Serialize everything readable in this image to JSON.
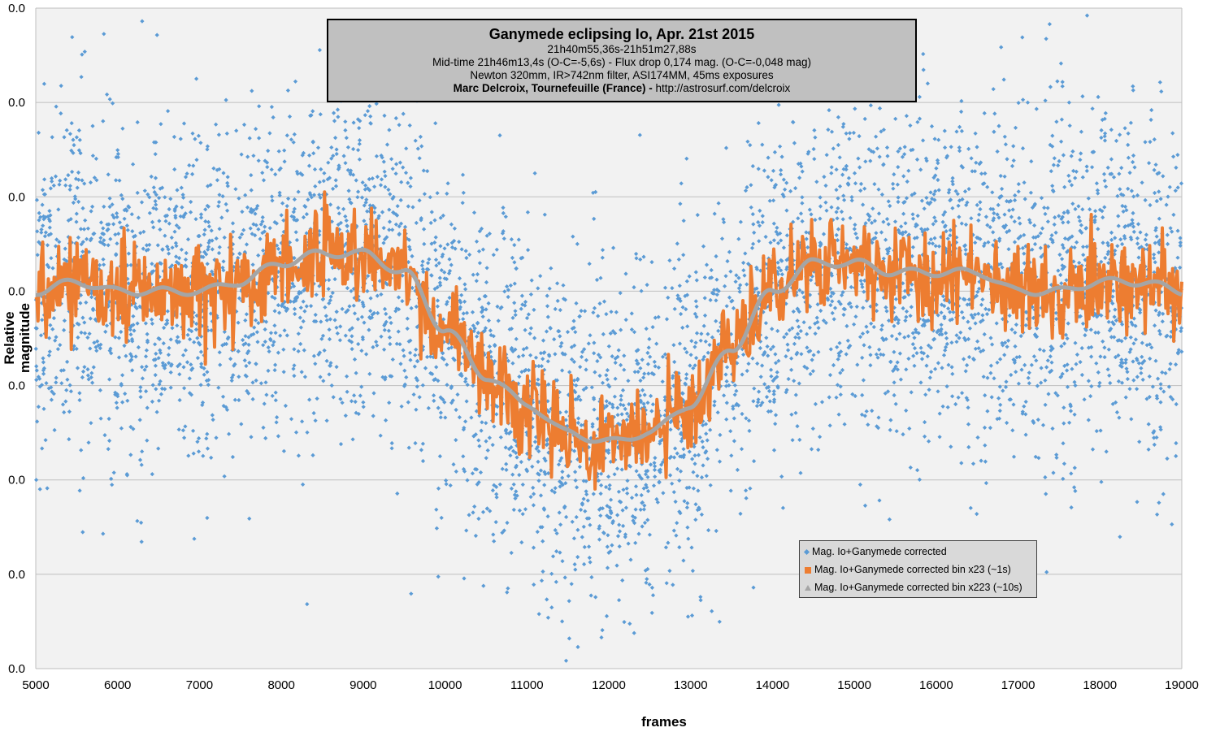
{
  "chart_data": {
    "type": "scatter",
    "title": "Ganymede eclipsing Io, Apr. 21st 2015",
    "subtitle_lines": [
      "21h40m55,36s-21h51m27,88s",
      "Mid-time 21h46m13,4s (O-C=-5,6s) - Flux drop 0,174 mag. (O-C=-0,048 mag)",
      "Newton 320mm, IR>742nm filter, ASI174MM, 45ms exposures"
    ],
    "credit": {
      "author": "Marc Delcroix, Tournefeuille (France) -",
      "url": "http://astrosurf.com/delcroix"
    },
    "xlabel": "frames",
    "ylabel_lines": [
      "Relative",
      "magnitude"
    ],
    "xlim": [
      5000,
      19000
    ],
    "ylim_top_to_bottom": [
      -0.05,
      0.3
    ],
    "x_ticks": [
      "5000",
      "6000",
      "7000",
      "8000",
      "9000",
      "10000",
      "11000",
      "12000",
      "13000",
      "14000",
      "15000",
      "16000",
      "17000",
      "18000",
      "19000"
    ],
    "y_ticks": [
      "0.0",
      "0.0",
      "0.0",
      "0.0",
      "0.0",
      "0.0",
      "0.0",
      "0.0"
    ],
    "grid": "horizontal",
    "legend_position": "bottom-right",
    "series": [
      {
        "name": "Mag. Io+Ganymede corrected",
        "color": "#5b9bd5",
        "marker": "diamond",
        "model_trend": {
          "x": [
            5000,
            5500,
            6000,
            6500,
            7000,
            7500,
            8000,
            8500,
            9000,
            9500,
            10000,
            10500,
            11000,
            11500,
            12000,
            12500,
            13000,
            13500,
            14000,
            14500,
            15000,
            15500,
            16000,
            16500,
            17000,
            17500,
            18000,
            18500,
            19000
          ],
          "y": [
            0.1,
            0.095,
            0.1,
            0.1,
            0.1,
            0.095,
            0.085,
            0.08,
            0.08,
            0.09,
            0.12,
            0.145,
            0.16,
            0.175,
            0.18,
            0.175,
            0.16,
            0.13,
            0.1,
            0.085,
            0.085,
            0.09,
            0.09,
            0.09,
            0.1,
            0.1,
            0.095,
            0.095,
            0.1
          ]
        },
        "scatter_sd": 0.045,
        "points_count": 5200
      },
      {
        "name": "Mag. Io+Ganymede corrected bin x23 (~1s)",
        "color": "#ed7d31",
        "marker": "square",
        "noise_sd": 0.012
      },
      {
        "name": "Mag. Io+Ganymede corrected bin x223 (~10s)",
        "color": "#a5a5a5",
        "marker": "triangle"
      }
    ]
  }
}
